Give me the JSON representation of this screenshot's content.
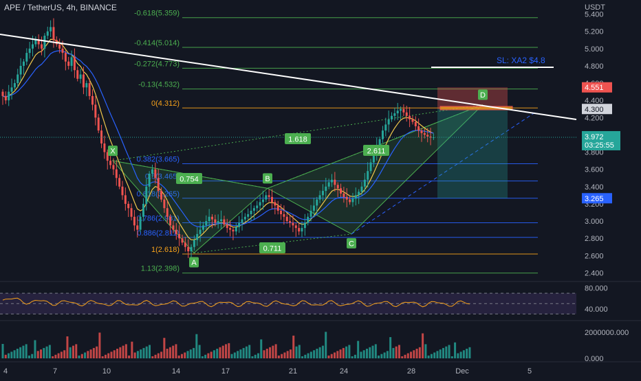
{
  "title": "APE / TetherUS, 4h, BINANCE",
  "currency": "USDT",
  "colors": {
    "background": "#131722",
    "up": "#26a69a",
    "down": "#ef5350",
    "trendline": "#ffffff",
    "fib_green": "#4caf50",
    "fib_orange": "#f7a21b",
    "fib_blue": "#2962ff",
    "fib_yellow": "#e0c546",
    "rsi": "#f7a21b",
    "ema_fast": "#f2c94c",
    "ema_slow": "#2962ff"
  },
  "chart_data": [
    {
      "type": "candlestick",
      "x_axis": {
        "ticks": [
          "4",
          "7",
          "10",
          "14",
          "17",
          "21",
          "24",
          "28",
          "Dec",
          "5"
        ],
        "tick_index": [
          0,
          18,
          37,
          62,
          81,
          105,
          124,
          148,
          167,
          186
        ]
      },
      "y_axis": {
        "ticks": [
          "5.400",
          "5.200",
          "5.000",
          "4.800",
          "4.600",
          "4.400",
          "4.200",
          "4.000",
          "3.800",
          "3.600",
          "3.400",
          "3.200",
          "3.000",
          "2.800",
          "2.600",
          "2.400"
        ],
        "ylim": [
          2.3,
          5.5
        ]
      },
      "close_series": [
        4.45,
        4.4,
        4.5,
        4.55,
        4.6,
        4.7,
        4.8,
        4.85,
        4.95,
        5.0,
        5.05,
        5.1,
        5.05,
        5.0,
        5.15,
        5.2,
        5.25,
        5.1,
        5.05,
        5.0,
        4.95,
        4.85,
        4.8,
        4.9,
        4.75,
        4.65,
        4.7,
        4.55,
        4.6,
        4.45,
        4.35,
        4.2,
        4.05,
        3.9,
        3.8,
        3.7,
        3.65,
        3.6,
        3.5,
        3.4,
        3.3,
        3.2,
        3.15,
        3.05,
        2.95,
        2.9,
        3.05,
        3.2,
        3.4,
        3.55,
        3.6,
        3.5,
        3.35,
        3.25,
        3.15,
        3.05,
        2.95,
        2.9,
        2.85,
        2.8,
        2.75,
        2.7,
        2.65,
        2.7,
        2.78,
        2.85,
        2.9,
        2.95,
        3.0,
        3.05,
        3.02,
        2.98,
        3.0,
        3.02,
        2.96,
        2.92,
        2.9,
        2.88,
        2.93,
        2.98,
        3.02,
        3.05,
        3.08,
        3.12,
        3.15,
        3.18,
        3.22,
        3.25,
        3.3,
        3.28,
        3.22,
        3.18,
        3.12,
        3.08,
        3.05,
        3.0,
        2.98,
        2.95,
        2.92,
        2.88,
        2.92,
        2.98,
        3.05,
        3.12,
        3.18,
        3.25,
        3.3,
        3.35,
        3.4,
        3.45,
        3.48,
        3.42,
        3.38,
        3.32,
        3.28,
        3.25,
        3.22,
        3.26,
        3.3,
        3.34,
        3.4,
        3.48,
        3.58,
        3.68,
        3.78,
        3.88,
        3.95,
        4.05,
        4.12,
        4.18,
        4.22,
        4.25,
        4.28,
        4.3,
        4.26,
        4.22,
        4.18,
        4.15,
        4.1,
        4.05,
        4.02,
        4.0,
        3.98,
        3.97,
        3.972
      ],
      "current_price": "3.972",
      "countdown": "03:25:55",
      "stop_price": "4.551",
      "entry_price": "4.300",
      "target_price": "3.265"
    },
    {
      "type": "fibonacci",
      "levels": [
        {
          "label": "-0.618(5.359)",
          "value": 5.359,
          "color": "#4caf50"
        },
        {
          "label": "-0.414(5.014)",
          "value": 5.014,
          "color": "#4caf50"
        },
        {
          "label": "-0.272(4.773)",
          "value": 4.773,
          "color": "#4caf50"
        },
        {
          "label": "-0.13(4.532)",
          "value": 4.532,
          "color": "#4caf50"
        },
        {
          "label": "0(4.312)",
          "value": 4.312,
          "color": "#f7a21b"
        },
        {
          "label": "0.382(3.665)",
          "value": 3.665,
          "color": "#2962ff"
        },
        {
          "label": "0.5(3.465)",
          "value": 3.465,
          "color": "#2962ff"
        },
        {
          "label": "0.618(3.265)",
          "value": 3.265,
          "color": "#2962ff"
        },
        {
          "label": "0.786(2.981)",
          "value": 2.981,
          "color": "#2962ff"
        },
        {
          "label": "0.886(2.811)",
          "value": 2.811,
          "color": "#2962ff"
        },
        {
          "label": "1(2.618)",
          "value": 2.618,
          "color": "#f7a21b"
        },
        {
          "label": "1.13(2.398)",
          "value": 2.398,
          "color": "#4caf50"
        }
      ]
    },
    {
      "type": "harmonic_pattern",
      "points": [
        {
          "label": "X",
          "value": 3.7
        },
        {
          "label": "A",
          "value": 2.63
        },
        {
          "label": "B",
          "value": 3.38
        },
        {
          "label": "C",
          "value": 2.85
        },
        {
          "label": "D",
          "value": 4.35
        }
      ],
      "ratios": [
        "0.754",
        "0.711",
        "1.618",
        "2.611"
      ],
      "sl_label": "SL: XA2 $4.8"
    },
    {
      "type": "line",
      "name": "RSI",
      "ticks": [
        "80.000",
        "40.000"
      ],
      "ylim": [
        20,
        90
      ]
    },
    {
      "type": "bar",
      "name": "Volume",
      "ticks": [
        "2000000.000",
        "0.000"
      ]
    }
  ]
}
